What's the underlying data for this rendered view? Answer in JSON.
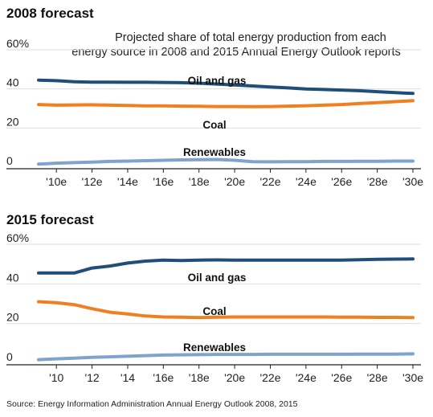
{
  "colors": {
    "oil_and_gas": "#1f4e79",
    "coal": "#f07f22",
    "renewables": "#7ea3cc",
    "axis": "#222222",
    "grid": "#dddddd"
  },
  "source": "Source: Energy Information Administration Annual Energy Outlook 2008, 2015",
  "chart_data": [
    {
      "type": "line",
      "title": "2008 forecast",
      "subtitle_lines": [
        "Projected share of total energy production from each",
        "energy source in 2008 and 2015 Annual Energy Outlook reports"
      ],
      "y_tick_labels": [
        "0",
        "20",
        "40",
        "60%"
      ],
      "y_ticks": [
        0,
        20,
        40,
        60
      ],
      "ylim": [
        0,
        60
      ],
      "xlim": [
        2009,
        2030
      ],
      "x_ticks": [
        2010,
        2012,
        2014,
        2016,
        2018,
        2020,
        2022,
        2024,
        2026,
        2028,
        2030
      ],
      "x_tick_labels": [
        "'10e",
        "'12e",
        "'14e",
        "'16e",
        "'18e",
        "'20e",
        "'22e",
        "'24e",
        "'26e",
        "'28e",
        "'30e"
      ],
      "x": [
        2009,
        2010,
        2011,
        2012,
        2013,
        2014,
        2015,
        2016,
        2017,
        2018,
        2019,
        2020,
        2021,
        2022,
        2023,
        2024,
        2025,
        2026,
        2027,
        2028,
        2029,
        2030
      ],
      "series": [
        {
          "name": "Oil and gas",
          "key": "oil_and_gas",
          "values": [
            44.5,
            44.2,
            43.7,
            43.5,
            43.5,
            43.4,
            43.4,
            43.3,
            43.2,
            42.9,
            42.5,
            42.0,
            41.5,
            41.0,
            40.5,
            40.0,
            39.7,
            39.4,
            39.1,
            38.6,
            38.1,
            37.7
          ]
        },
        {
          "name": "Coal",
          "key": "coal",
          "values": [
            32.0,
            31.7,
            31.8,
            31.9,
            31.7,
            31.5,
            31.3,
            31.3,
            31.2,
            31.1,
            31.0,
            31.0,
            30.9,
            31.0,
            31.2,
            31.4,
            31.7,
            32.0,
            32.5,
            33.0,
            33.5,
            34.0
          ]
        },
        {
          "name": "Renewables",
          "key": "renewables",
          "values": [
            1.5,
            2.0,
            2.3,
            2.6,
            2.9,
            3.1,
            3.3,
            3.5,
            3.7,
            3.8,
            3.9,
            3.5,
            2.8,
            2.7,
            2.8,
            2.8,
            2.9,
            2.9,
            3.0,
            3.0,
            3.1,
            3.1
          ]
        }
      ]
    },
    {
      "type": "line",
      "title": "2015 forecast",
      "y_tick_labels": [
        "0",
        "20",
        "40",
        "60%"
      ],
      "y_ticks": [
        0,
        20,
        40,
        60
      ],
      "ylim": [
        0,
        60
      ],
      "xlim": [
        2009,
        2030
      ],
      "x_ticks": [
        2010,
        2012,
        2014,
        2016,
        2018,
        2020,
        2022,
        2024,
        2026,
        2028,
        2030
      ],
      "x_tick_labels": [
        "'10",
        "'12",
        "'14",
        "'16e",
        "'18e",
        "'20e",
        "'22e",
        "'24e",
        "'26e",
        "'28e",
        "'30e"
      ],
      "x": [
        2009,
        2010,
        2011,
        2012,
        2013,
        2014,
        2015,
        2016,
        2017,
        2018,
        2019,
        2020,
        2021,
        2022,
        2023,
        2024,
        2025,
        2026,
        2027,
        2028,
        2029,
        2030
      ],
      "series": [
        {
          "name": "Oil and gas",
          "key": "oil_and_gas",
          "values": [
            45.5,
            45.5,
            45.5,
            48.0,
            49.0,
            50.5,
            51.5,
            52.0,
            51.8,
            52.0,
            52.1,
            52.0,
            52.0,
            52.0,
            52.0,
            52.0,
            52.0,
            52.0,
            52.2,
            52.4,
            52.5,
            52.6
          ]
        },
        {
          "name": "Coal",
          "key": "coal",
          "values": [
            31.0,
            30.5,
            29.5,
            27.5,
            25.7,
            24.8,
            23.8,
            23.3,
            23.2,
            23.0,
            23.2,
            23.3,
            23.3,
            23.3,
            23.3,
            23.3,
            23.3,
            23.2,
            23.2,
            23.1,
            23.1,
            23.0
          ]
        },
        {
          "name": "Renewables",
          "key": "renewables",
          "values": [
            1.8,
            2.2,
            2.5,
            2.9,
            3.2,
            3.5,
            3.8,
            4.1,
            4.2,
            4.3,
            4.4,
            4.4,
            4.4,
            4.5,
            4.5,
            4.5,
            4.5,
            4.5,
            4.6,
            4.6,
            4.6,
            4.7
          ]
        }
      ]
    }
  ]
}
